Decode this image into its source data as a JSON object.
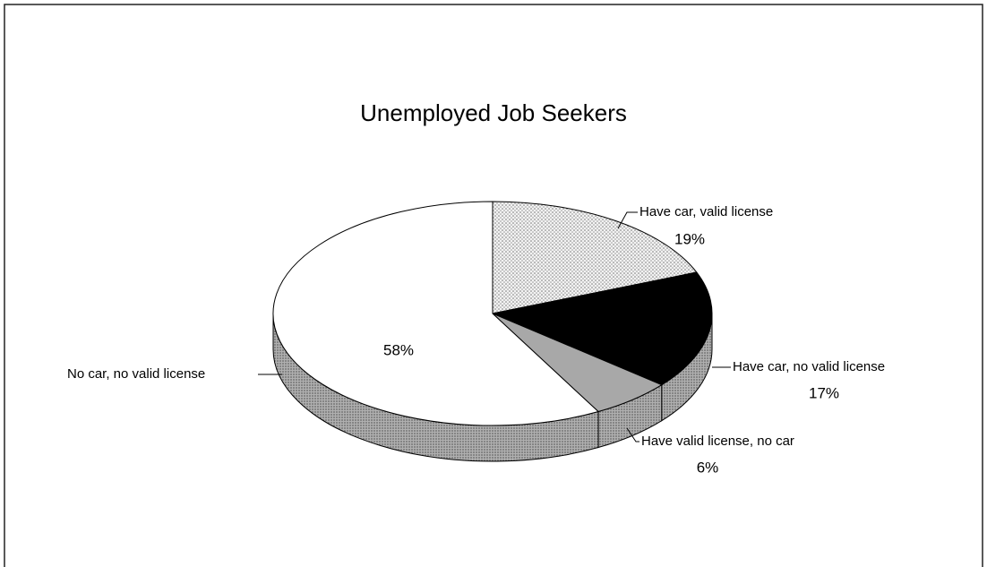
{
  "chart_data": {
    "type": "pie",
    "title": "Unemployed Job Seekers",
    "categories": [
      "Have car, valid license",
      "Have car, no valid license",
      "Have valid license, no car",
      "No car, no valid license"
    ],
    "values": [
      19,
      17,
      6,
      58
    ],
    "value_labels": [
      "19%",
      "17%",
      "6%",
      "58%"
    ],
    "colors": [
      "#d8d8d8",
      "#000000",
      "#a8a8a8",
      "#ffffff"
    ]
  }
}
